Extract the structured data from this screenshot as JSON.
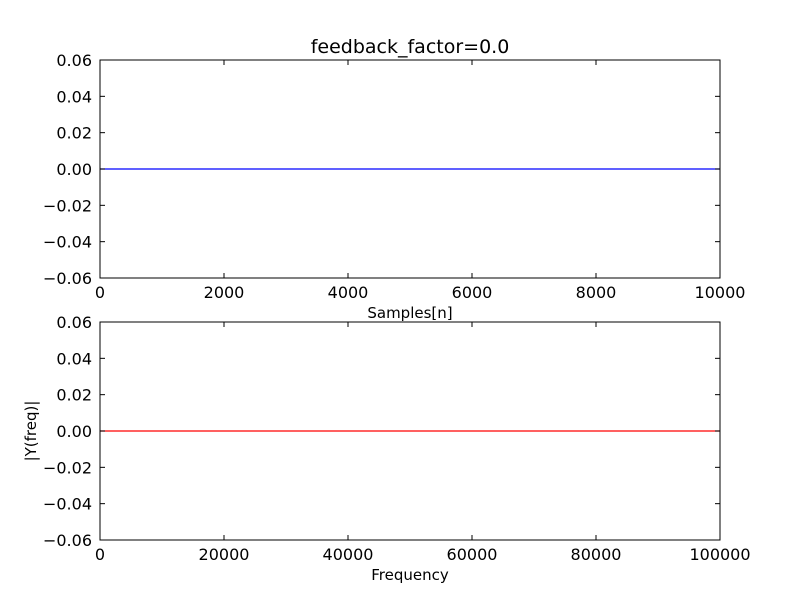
{
  "chart_data": [
    {
      "type": "line",
      "title": "feedback_factor=0.0",
      "xlabel": "Samples[n]",
      "ylabel": "",
      "xlim": [
        0,
        10000
      ],
      "ylim": [
        -0.06,
        0.06
      ],
      "x_ticks": [
        0,
        2000,
        4000,
        6000,
        8000,
        10000
      ],
      "y_ticks": [
        0.06,
        0.04,
        0.02,
        0.0,
        -0.02,
        -0.04,
        -0.06
      ],
      "x_tick_labels": [
        "0",
        "2000",
        "4000",
        "6000",
        "8000",
        "10000"
      ],
      "y_tick_labels": [
        "0.06",
        "0.04",
        "0.02",
        "0.00",
        "−0.02",
        "−0.04",
        "−0.06"
      ],
      "grid": false,
      "series": [
        {
          "color": "#0000ff",
          "x": [
            0,
            10000
          ],
          "y": [
            0.0,
            0.0
          ]
        }
      ]
    },
    {
      "type": "line",
      "title": "",
      "xlabel": "Frequency",
      "ylabel": "|Y(freq)|",
      "xlim": [
        0,
        100000
      ],
      "ylim": [
        -0.06,
        0.06
      ],
      "x_ticks": [
        0,
        20000,
        40000,
        60000,
        80000,
        100000
      ],
      "y_ticks": [
        0.06,
        0.04,
        0.02,
        0.0,
        -0.02,
        -0.04,
        -0.06
      ],
      "x_tick_labels": [
        "0",
        "20000",
        "40000",
        "60000",
        "80000",
        "100000"
      ],
      "y_tick_labels": [
        "0.06",
        "0.04",
        "0.02",
        "0.00",
        "−0.02",
        "−0.04",
        "−0.06"
      ],
      "grid": false,
      "series": [
        {
          "color": "#ff0000",
          "x": [
            0,
            100000
          ],
          "y": [
            0.0,
            0.0
          ]
        }
      ]
    }
  ]
}
